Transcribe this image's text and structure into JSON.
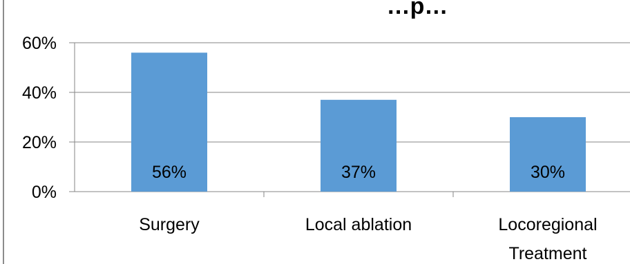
{
  "chart_data": {
    "type": "bar",
    "title": "…p…",
    "categories": [
      [
        "Surgery"
      ],
      [
        "Local ablation"
      ],
      [
        "Locoregional",
        "Treatment"
      ]
    ],
    "values": [
      56,
      37,
      30
    ],
    "data_labels": [
      "56%",
      "37%",
      "30%"
    ],
    "y_ticks": [
      0,
      20,
      40,
      60
    ],
    "y_tick_labels": [
      "0%",
      "20%",
      "40%",
      "60%"
    ],
    "ylim": [
      0,
      60
    ],
    "xlabel": "",
    "ylabel": "",
    "grid": true,
    "bar_color": "#5b9bd5",
    "legend": "none"
  }
}
